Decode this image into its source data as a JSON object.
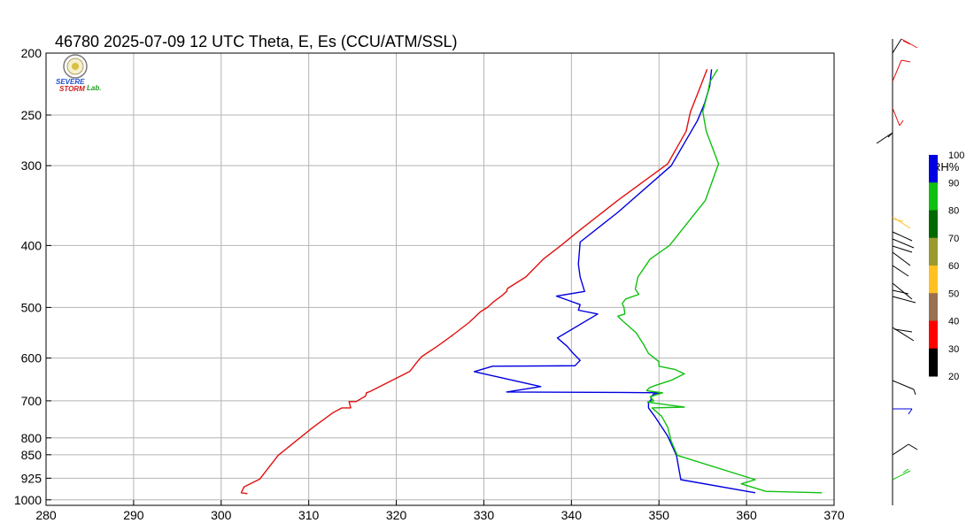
{
  "chart_data": {
    "type": "line",
    "title": "46780  2025-07-09 12 UTC  Theta, E, Es (CCU/ATM/SSL)",
    "xlim": [
      280,
      370
    ],
    "ylim_hPa": [
      1020,
      200
    ],
    "y_scale": "log",
    "grid": true,
    "x_ticks": [
      280,
      290,
      300,
      310,
      320,
      330,
      340,
      350,
      360,
      370
    ],
    "y_ticks": [
      200,
      250,
      300,
      400,
      500,
      600,
      700,
      800,
      850,
      925,
      1000
    ],
    "series": [
      {
        "color": "#e01010",
        "points": [
          [
            303.0,
            978
          ],
          [
            302.3,
            975
          ],
          [
            302.6,
            955
          ],
          [
            304.4,
            928
          ],
          [
            306.5,
            852
          ],
          [
            308.5,
            810
          ],
          [
            310.5,
            770
          ],
          [
            312.8,
            730
          ],
          [
            313.8,
            718
          ],
          [
            314.8,
            718
          ],
          [
            314.6,
            702
          ],
          [
            315.4,
            702
          ],
          [
            316.5,
            688
          ],
          [
            316.6,
            680
          ],
          [
            317.0,
            677
          ],
          [
            321.5,
            630
          ],
          [
            321.8,
            623
          ],
          [
            322.0,
            618
          ],
          [
            322.4,
            608
          ],
          [
            322.9,
            597
          ],
          [
            324.7,
            575
          ],
          [
            326.4,
            553
          ],
          [
            328.3,
            528
          ],
          [
            329.6,
            508
          ],
          [
            330.4,
            500
          ],
          [
            331.1,
            490
          ],
          [
            332.0,
            480
          ],
          [
            332.6,
            472
          ],
          [
            332.7,
            467
          ],
          [
            334.8,
            448
          ],
          [
            336.8,
            420
          ],
          [
            338.8,
            400
          ],
          [
            340.8,
            380
          ],
          [
            345.3,
            340
          ],
          [
            351.0,
            298
          ],
          [
            353.1,
            265
          ],
          [
            353.6,
            247
          ],
          [
            354.5,
            230
          ],
          [
            355.5,
            212
          ]
        ]
      },
      {
        "color": "#0000e0",
        "points": [
          [
            361.0,
            975
          ],
          [
            352.5,
            930
          ],
          [
            352.0,
            852
          ],
          [
            351.0,
            795
          ],
          [
            349.5,
            740
          ],
          [
            348.8,
            718
          ],
          [
            348.8,
            703
          ],
          [
            349.1,
            698
          ],
          [
            349.1,
            690
          ],
          [
            349.4,
            683
          ],
          [
            350.1,
            680
          ],
          [
            345.6,
            679
          ],
          [
            332.6,
            678
          ],
          [
            336.5,
            665
          ],
          [
            328.9,
            630
          ],
          [
            331.0,
            618
          ],
          [
            340.4,
            617
          ],
          [
            341.0,
            605
          ],
          [
            340.2,
            590
          ],
          [
            339.5,
            575
          ],
          [
            338.4,
            558
          ],
          [
            343.0,
            512
          ],
          [
            340.8,
            505
          ],
          [
            341.0,
            495
          ],
          [
            338.3,
            480
          ],
          [
            341.5,
            472
          ],
          [
            341.0,
            448
          ],
          [
            340.8,
            428
          ],
          [
            341.0,
            395
          ],
          [
            345.3,
            355
          ],
          [
            351.4,
            300
          ],
          [
            354.4,
            255
          ],
          [
            355.2,
            240
          ],
          [
            355.8,
            225
          ],
          [
            356.0,
            212
          ]
        ]
      },
      {
        "color": "#10c010",
        "points": [
          [
            368.6,
            975
          ],
          [
            362.2,
            970
          ],
          [
            359.4,
            944
          ],
          [
            361.0,
            930
          ],
          [
            352.1,
            852
          ],
          [
            351.4,
            810
          ],
          [
            351.0,
            770
          ],
          [
            350.3,
            740
          ],
          [
            349.2,
            718
          ],
          [
            352.9,
            716
          ],
          [
            349.3,
            705
          ],
          [
            348.7,
            703
          ],
          [
            349.4,
            700
          ],
          [
            349.0,
            690
          ],
          [
            349.7,
            685
          ],
          [
            350.4,
            680
          ],
          [
            348.6,
            675
          ],
          [
            348.9,
            668
          ],
          [
            349.6,
            662
          ],
          [
            351.4,
            650
          ],
          [
            352.9,
            635
          ],
          [
            351.8,
            625
          ],
          [
            350.0,
            618
          ],
          [
            350.0,
            608
          ],
          [
            348.8,
            590
          ],
          [
            348.2,
            570
          ],
          [
            347.4,
            548
          ],
          [
            345.8,
            524
          ],
          [
            345.3,
            516
          ],
          [
            346.1,
            512
          ],
          [
            346.0,
            500
          ],
          [
            345.8,
            493
          ],
          [
            346.2,
            485
          ],
          [
            347.7,
            477
          ],
          [
            347.3,
            468
          ],
          [
            347.6,
            448
          ],
          [
            349.0,
            420
          ],
          [
            351.2,
            400
          ],
          [
            355.3,
            340
          ],
          [
            356.8,
            298
          ],
          [
            355.4,
            265
          ],
          [
            355.0,
            247
          ],
          [
            355.6,
            230
          ],
          [
            355.8,
            222
          ],
          [
            356.7,
            212
          ]
        ]
      }
    ]
  },
  "colorbar": {
    "label": "RH%",
    "ticks": [
      "100",
      "90",
      "80",
      "70",
      "60",
      "50",
      "40",
      "30",
      "20"
    ],
    "colors": [
      "#0000e0",
      "#10c010",
      "#006a00",
      "#9a9a30",
      "#ffc020",
      "#9a7050",
      "#ff0000",
      "#000000"
    ]
  },
  "logo": {
    "word1": "SEVERE",
    "word2": "STORM",
    "word3": "Lab."
  }
}
